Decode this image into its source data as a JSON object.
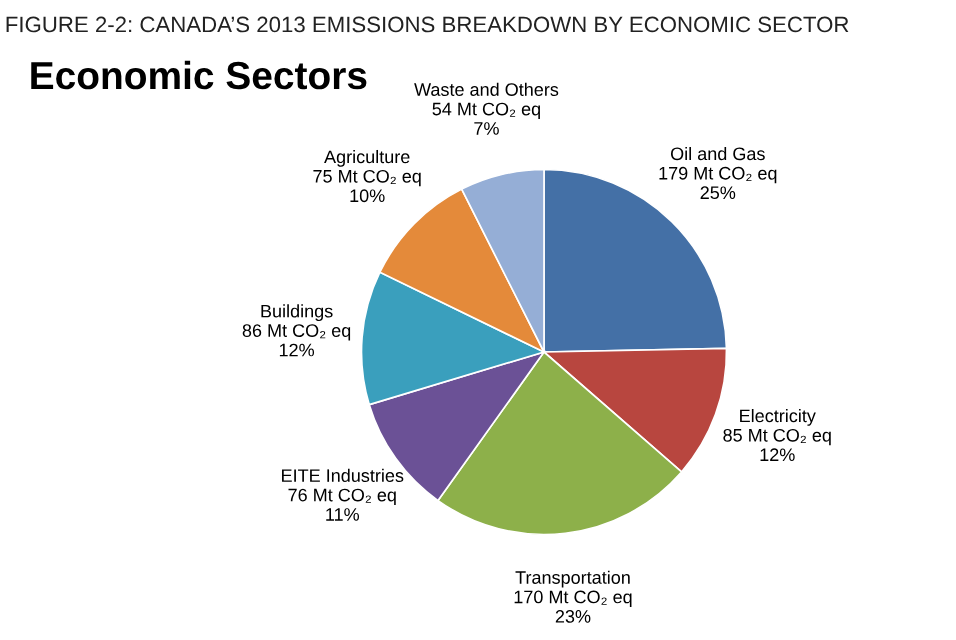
{
  "chart_data": {
    "type": "pie",
    "title": "FIGURE 2-2: CANADA’S 2013 EMISSIONS BREAKDOWN BY ECONOMIC SECTOR",
    "subtitle": "Economic Sectors",
    "categories": [
      "Oil and Gas",
      "Electricity",
      "Transportation",
      "EITE Industries",
      "Buildings",
      "Agriculture",
      "Waste and Others"
    ],
    "values": [
      179,
      85,
      170,
      76,
      86,
      75,
      54
    ],
    "value_labels": [
      "179 Mt CO₂ eq\n25%",
      "85 Mt CO₂ eq\n12%",
      "170 Mt CO₂ eq\n23%",
      "76 Mt CO₂ eq\n11%",
      "86 Mt CO₂ eq\n12%",
      "75 Mt CO₂ eq\n10%",
      "54 Mt CO₂ eq\n7%"
    ],
    "colors": [
      "#4470a6",
      "#b8463f",
      "#8db04a",
      "#6b5196",
      "#3a9fbd",
      "#e48a3a",
      "#95aed6"
    ]
  }
}
